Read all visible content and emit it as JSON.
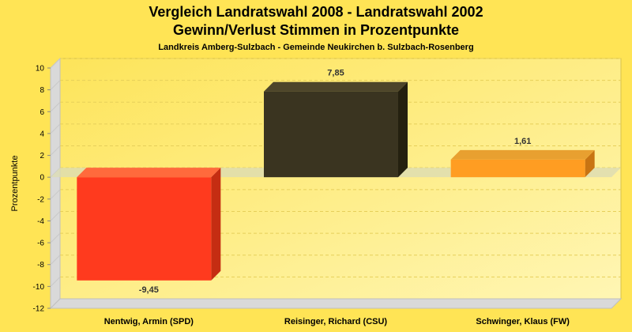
{
  "chart_data": {
    "type": "bar",
    "title_lines": [
      "Vergleich Landratswahl 2008 - Landratswahl 2002",
      "Gewinn/Verlust Stimmen in Prozentpunkte"
    ],
    "subtitle": "Landkreis Amberg-Sulzbach - Gemeinde Neukirchen b. Sulzbach-Rosenberg",
    "xlabel": "",
    "ylabel": "Prozentpunkte",
    "ylim": [
      -12,
      10
    ],
    "yticks": [
      -12,
      -10,
      -8,
      -6,
      -4,
      -2,
      0,
      2,
      4,
      6,
      8,
      10
    ],
    "grid": true,
    "categories": [
      "Nentwig, Armin (SPD)",
      "Reisinger, Richard (CSU)",
      "Schwinger, Klaus (FW)"
    ],
    "values": [
      -9.45,
      7.85,
      1.61
    ],
    "value_labels": [
      "-9,45",
      "7,85",
      "1,61"
    ],
    "colors": [
      "#ff3a1e",
      "#3a3420",
      "#ff9d22"
    ],
    "colors_side": [
      "#c52d12",
      "#24200f",
      "#c87412"
    ],
    "colors_top": [
      "#ff6a3c",
      "#4d452a",
      "#e8a030"
    ]
  }
}
